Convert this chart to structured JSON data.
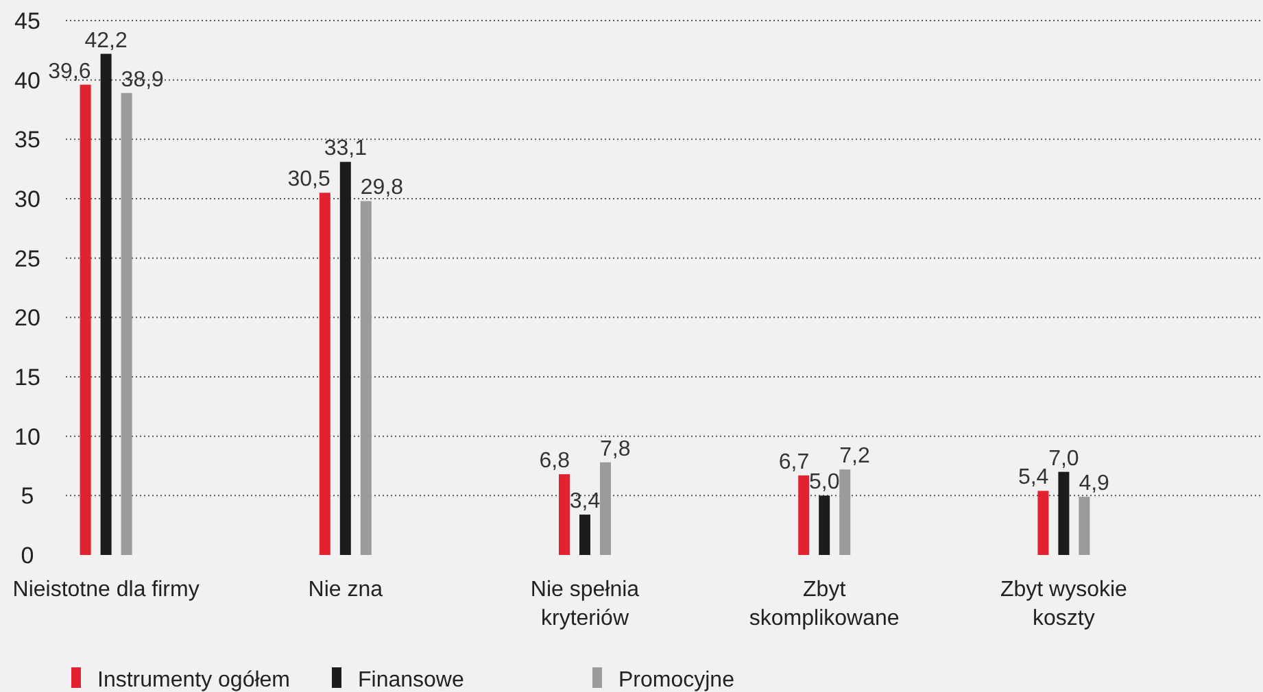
{
  "chart_data": {
    "type": "bar",
    "categories": [
      "Nieistotne dla firmy",
      "Nie zna",
      "Nie spełnia\nkryteriów",
      "Zbyt\nskomplikowane",
      "Zbyt wysokie\nkoszty"
    ],
    "series": [
      {
        "name": "Instrumenty ogółem",
        "color": "#e3222f",
        "values": [
          39.6,
          30.5,
          6.8,
          6.7,
          5.4
        ],
        "value_labels": [
          "39,6",
          "30,5",
          "6,8",
          "6,7",
          "5,4"
        ]
      },
      {
        "name": "Finansowe",
        "color": "#1c1c1c",
        "values": [
          42.2,
          33.1,
          3.4,
          5.0,
          7.0
        ],
        "value_labels": [
          "42,2",
          "33,1",
          "3,4",
          "5,0",
          "7,0"
        ]
      },
      {
        "name": "Promocyjne",
        "color": "#9b9b9b",
        "values": [
          38.9,
          29.8,
          7.8,
          7.2,
          4.9
        ],
        "value_labels": [
          "38,9",
          "29,8",
          "7,8",
          "7,2",
          "4,9"
        ]
      }
    ],
    "ylim": [
      0,
      45
    ],
    "yticks": [
      0,
      5,
      10,
      15,
      20,
      25,
      30,
      35,
      40,
      45
    ],
    "grid": "y",
    "legend": "bottom"
  }
}
